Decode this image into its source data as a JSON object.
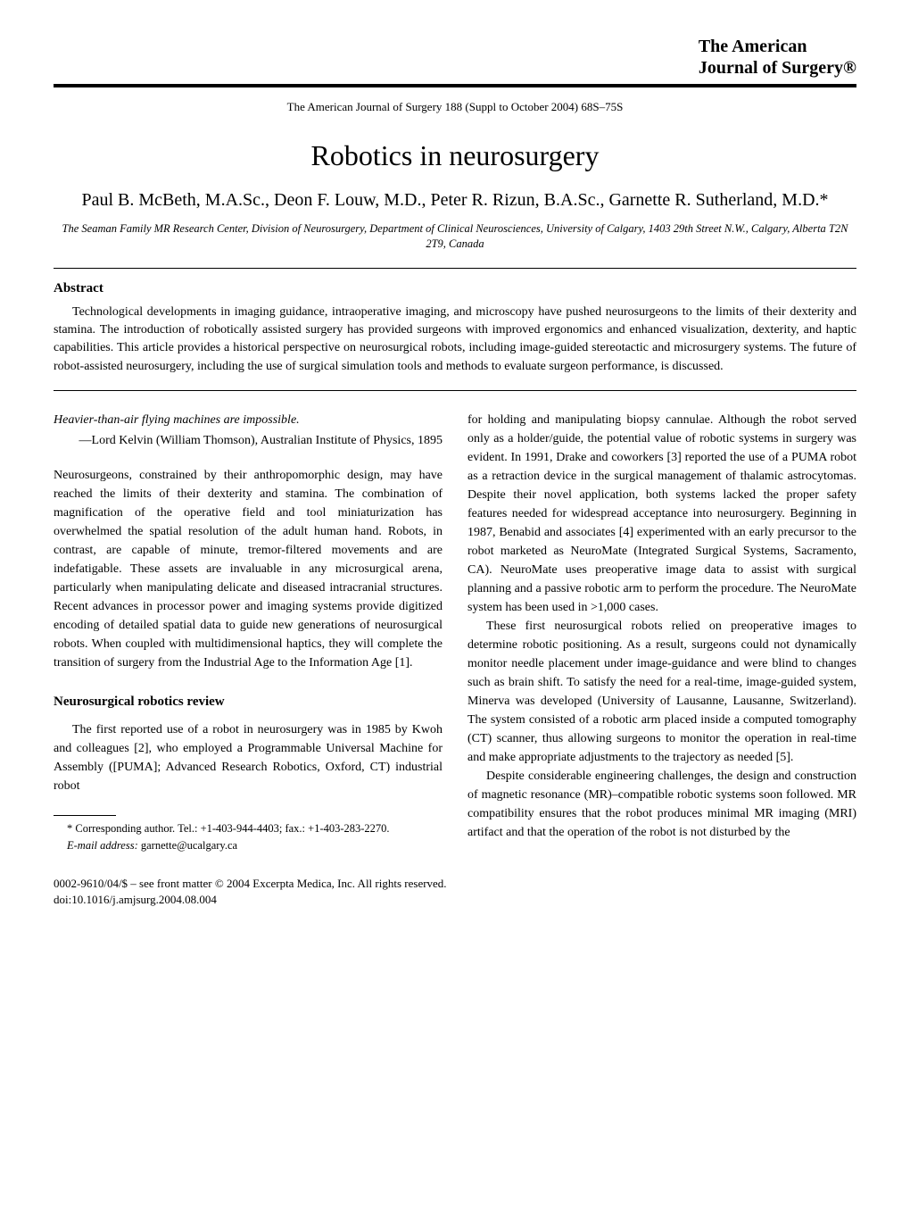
{
  "journal": {
    "line1": "The American",
    "line2": "Journal of Surgery®"
  },
  "citation": "The American Journal of Surgery 188 (Suppl to October 2004) 68S–75S",
  "title": "Robotics in neurosurgery",
  "authors": "Paul B. McBeth, M.A.Sc., Deon F. Louw, M.D., Peter R. Rizun, B.A.Sc., Garnette R. Sutherland, M.D.*",
  "affiliation": "The Seaman Family MR Research Center, Division of Neurosurgery, Department of Clinical Neurosciences, University of Calgary, 1403 29th Street N.W., Calgary, Alberta T2N 2T9, Canada",
  "abstract_label": "Abstract",
  "abstract": "Technological developments in imaging guidance, intraoperative imaging, and microscopy have pushed neurosurgeons to the limits of their dexterity and stamina. The introduction of robotically assisted surgery has provided surgeons with improved ergonomics and enhanced visualization, dexterity, and haptic capabilities. This article provides a historical perspective on neurosurgical robots, including image-guided stereotactic and microsurgery systems. The future of robot-assisted neurosurgery, including the use of surgical simulation tools and methods to evaluate surgeon performance, is discussed.",
  "left": {
    "epigraph": "Heavier-than-air flying machines are impossible.",
    "epigraph_attr": "—Lord Kelvin (William Thomson), Australian Institute of Physics, 1895",
    "para1": "Neurosurgeons, constrained by their anthropomorphic design, may have reached the limits of their dexterity and stamina. The combination of magnification of the operative field and tool miniaturization has overwhelmed the spatial resolution of the adult human hand. Robots, in contrast, are capable of minute, tremor-filtered movements and are indefatigable. These assets are invaluable in any microsurgical arena, particularly when manipulating delicate and diseased intracranial structures. Recent advances in processor power and imaging systems provide digitized encoding of detailed spatial data to guide new generations of neurosurgical robots. When coupled with multidimensional haptics, they will complete the transition of surgery from the Industrial Age to the Information Age [1].",
    "subheading": "Neurosurgical robotics review",
    "para2": "The first reported use of a robot in neurosurgery was in 1985 by Kwoh and colleagues [2], who employed a Programmable Universal Machine for Assembly ([PUMA]; Advanced Research Robotics, Oxford, CT) industrial robot",
    "footnote": "* Corresponding author. Tel.: +1-403-944-4403; fax.: +1-403-283-2270.",
    "footnote_email_label": "E-mail address:",
    "footnote_email": "garnette@ucalgary.ca"
  },
  "right": {
    "para1": "for holding and manipulating biopsy cannulae. Although the robot served only as a holder/guide, the potential value of robotic systems in surgery was evident. In 1991, Drake and coworkers [3] reported the use of a PUMA robot as a retraction device in the surgical management of thalamic astrocytomas. Despite their novel application, both systems lacked the proper safety features needed for widespread acceptance into neurosurgery. Beginning in 1987, Benabid and associates [4] experimented with an early precursor to the robot marketed as NeuroMate (Integrated Surgical Systems, Sacramento, CA). NeuroMate uses preoperative image data to assist with surgical planning and a passive robotic arm to perform the procedure. The NeuroMate system has been used in >1,000 cases.",
    "para2": "These first neurosurgical robots relied on preoperative images to determine robotic positioning. As a result, surgeons could not dynamically monitor needle placement under image-guidance and were blind to changes such as brain shift. To satisfy the need for a real-time, image-guided system, Minerva was developed (University of Lausanne, Lausanne, Switzerland). The system consisted of a robotic arm placed inside a computed tomography (CT) scanner, thus allowing surgeons to monitor the operation in real-time and make appropriate adjustments to the trajectory as needed [5].",
    "para3": "Despite considerable engineering challenges, the design and construction of magnetic resonance (MR)–compatible robotic systems soon followed. MR compatibility ensures that the robot produces minimal MR imaging (MRI) artifact and that the operation of the robot is not disturbed by the"
  },
  "footer": {
    "line1": "0002-9610/04/$ – see front matter © 2004 Excerpta Medica, Inc. All rights reserved.",
    "line2": "doi:10.1016/j.amjsurg.2004.08.004"
  }
}
